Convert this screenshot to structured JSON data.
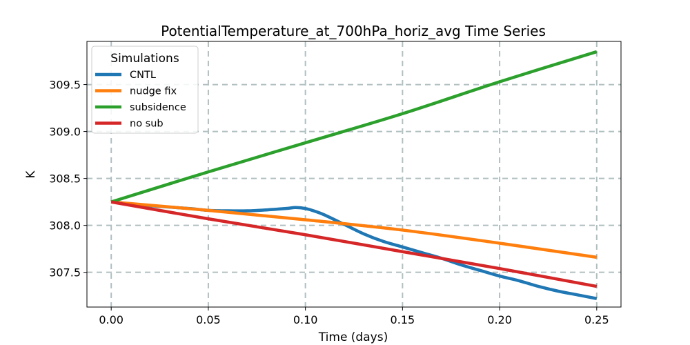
{
  "chart_data": {
    "type": "line",
    "title": "PotentialTemperature_at_700hPa_horiz_avg Time Series",
    "xlabel": "Time (days)",
    "ylabel": "K",
    "xlim": [
      -0.0125,
      0.2625
    ],
    "ylim": [
      307.13,
      309.96
    ],
    "x_ticks": [
      0.0,
      0.05,
      0.1,
      0.15,
      0.2,
      0.25
    ],
    "x_tick_labels": [
      "0.00",
      "0.05",
      "0.10",
      "0.15",
      "0.20",
      "0.25"
    ],
    "y_ticks": [
      307.5,
      308.0,
      308.5,
      309.0,
      309.5
    ],
    "y_tick_labels": [
      "307.5",
      "308.0",
      "308.5",
      "309.0",
      "309.5"
    ],
    "grid": true,
    "legend": {
      "title": "Simulations",
      "placement": "top-left"
    },
    "series": [
      {
        "name": "CNTL",
        "color": "#1f77b4",
        "x": [
          0.0,
          0.02,
          0.04,
          0.05,
          0.06,
          0.07,
          0.08,
          0.09,
          0.095,
          0.1,
          0.105,
          0.11,
          0.12,
          0.13,
          0.14,
          0.15,
          0.16,
          0.17,
          0.18,
          0.19,
          0.2,
          0.21,
          0.22,
          0.23,
          0.24,
          0.25
        ],
        "values": [
          308.25,
          308.21,
          308.18,
          308.16,
          308.155,
          308.155,
          308.165,
          308.18,
          308.19,
          308.18,
          308.15,
          308.11,
          308.01,
          307.91,
          307.83,
          307.77,
          307.71,
          307.65,
          307.58,
          307.52,
          307.46,
          307.41,
          307.35,
          307.3,
          307.26,
          307.22
        ]
      },
      {
        "name": "nudge fix",
        "color": "#ff7f0e",
        "x": [
          0.0,
          0.05,
          0.1,
          0.15,
          0.2,
          0.25
        ],
        "values": [
          308.25,
          308.16,
          308.06,
          307.95,
          307.81,
          307.66
        ]
      },
      {
        "name": "subsidence",
        "color": "#2ca02c",
        "x": [
          0.0,
          0.05,
          0.1,
          0.15,
          0.2,
          0.25
        ],
        "values": [
          308.25,
          308.57,
          308.88,
          309.19,
          309.53,
          309.85
        ]
      },
      {
        "name": "no sub",
        "color": "#d62728",
        "x": [
          0.0,
          0.05,
          0.1,
          0.15,
          0.2,
          0.25
        ],
        "values": [
          308.25,
          308.07,
          307.9,
          307.72,
          307.54,
          307.35
        ]
      }
    ]
  }
}
